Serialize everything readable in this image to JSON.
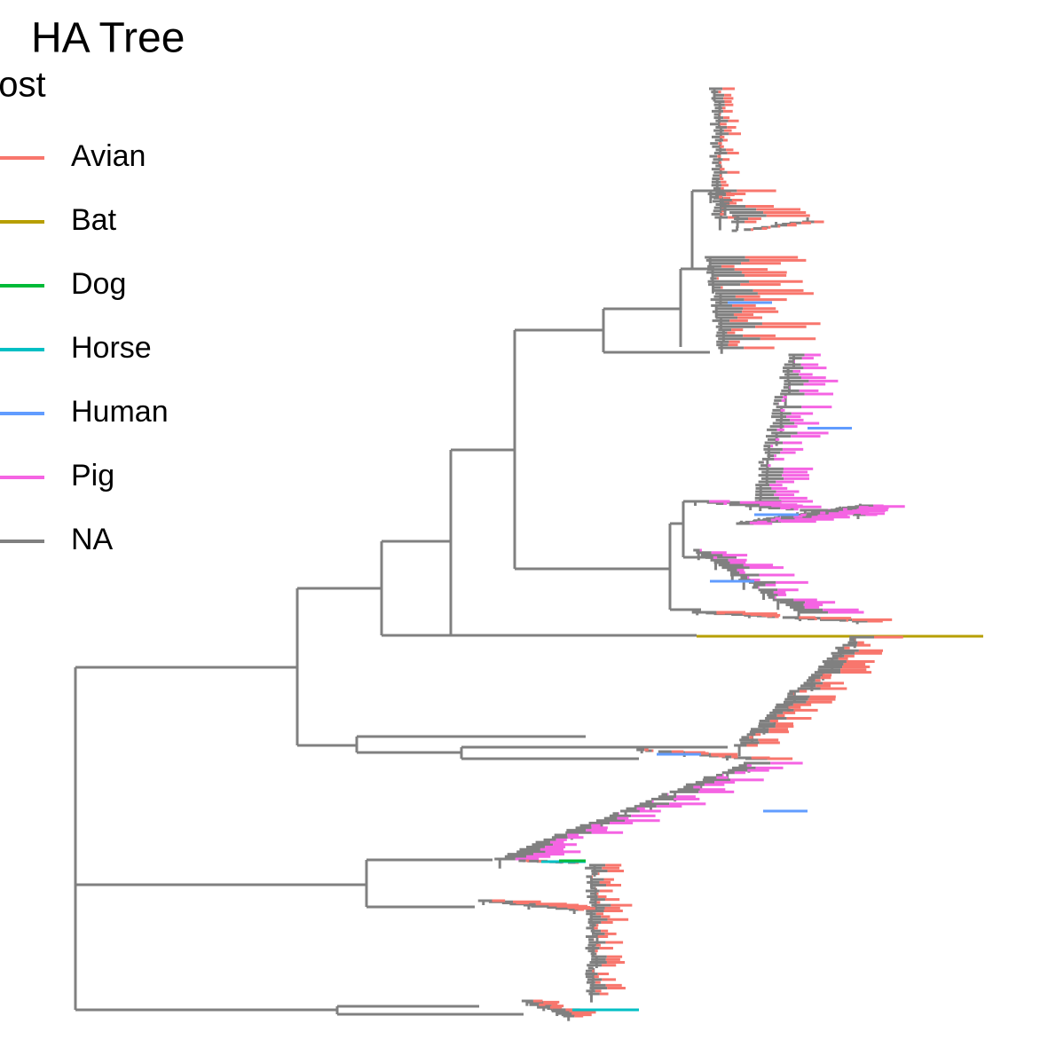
{
  "chart_data": {
    "type": "tree",
    "title": "HA Tree",
    "legend_title": "host",
    "series": [
      {
        "name": "Avian",
        "color": "#F8766D"
      },
      {
        "name": "Bat",
        "color": "#B79F00"
      },
      {
        "name": "Dog",
        "color": "#00BA38"
      },
      {
        "name": "Horse",
        "color": "#00BFC4"
      },
      {
        "name": "Human",
        "color": "#619CFF"
      },
      {
        "name": "Pig",
        "color": "#F564E3"
      },
      {
        "name": "NA",
        "color": "#808080"
      }
    ]
  }
}
